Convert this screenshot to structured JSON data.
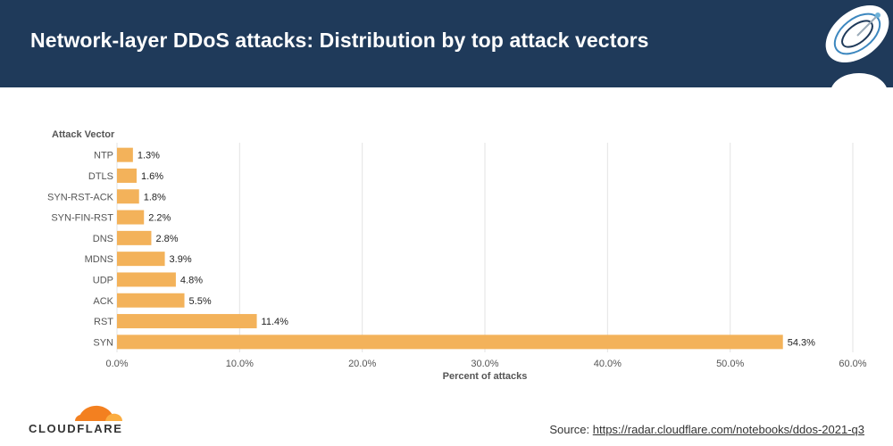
{
  "header": {
    "title": "Network-layer DDoS attacks: Distribution by top attack vectors"
  },
  "colors": {
    "header_bg": "#1f3a5a",
    "bar": "#f3b25a",
    "grid": "#e3e3e3",
    "axis_text": "#555555",
    "logo_orange": "#f38020"
  },
  "icons": {
    "header": "satellite-dish-icon",
    "footer": "cloudflare-cloud-icon"
  },
  "chart_data": {
    "type": "bar",
    "orientation": "horizontal",
    "categories": [
      "NTP",
      "DTLS",
      "SYN-RST-ACK",
      "SYN-FIN-RST",
      "DNS",
      "MDNS",
      "UDP",
      "ACK",
      "RST",
      "SYN"
    ],
    "values": [
      1.3,
      1.6,
      1.8,
      2.2,
      2.8,
      3.9,
      4.8,
      5.5,
      11.4,
      54.3
    ],
    "value_labels": [
      "1.3%",
      "1.6%",
      "1.8%",
      "2.2%",
      "2.8%",
      "3.9%",
      "4.8%",
      "5.5%",
      "11.4%",
      "54.3%"
    ],
    "ylabel": "Attack Vector",
    "xlabel": "Percent of attacks",
    "xlim": [
      0,
      60
    ],
    "xticks": [
      0,
      10,
      20,
      30,
      40,
      50,
      60
    ],
    "xtick_labels": [
      "0.0%",
      "10.0%",
      "20.0%",
      "30.0%",
      "40.0%",
      "50.0%",
      "60.0%"
    ],
    "grid": true,
    "legend": "none"
  },
  "footer": {
    "logo_text": "CLOUDFLARE",
    "source_prefix": "Source: ",
    "source_url": "https://radar.cloudflare.com/notebooks/ddos-2021-q3"
  }
}
